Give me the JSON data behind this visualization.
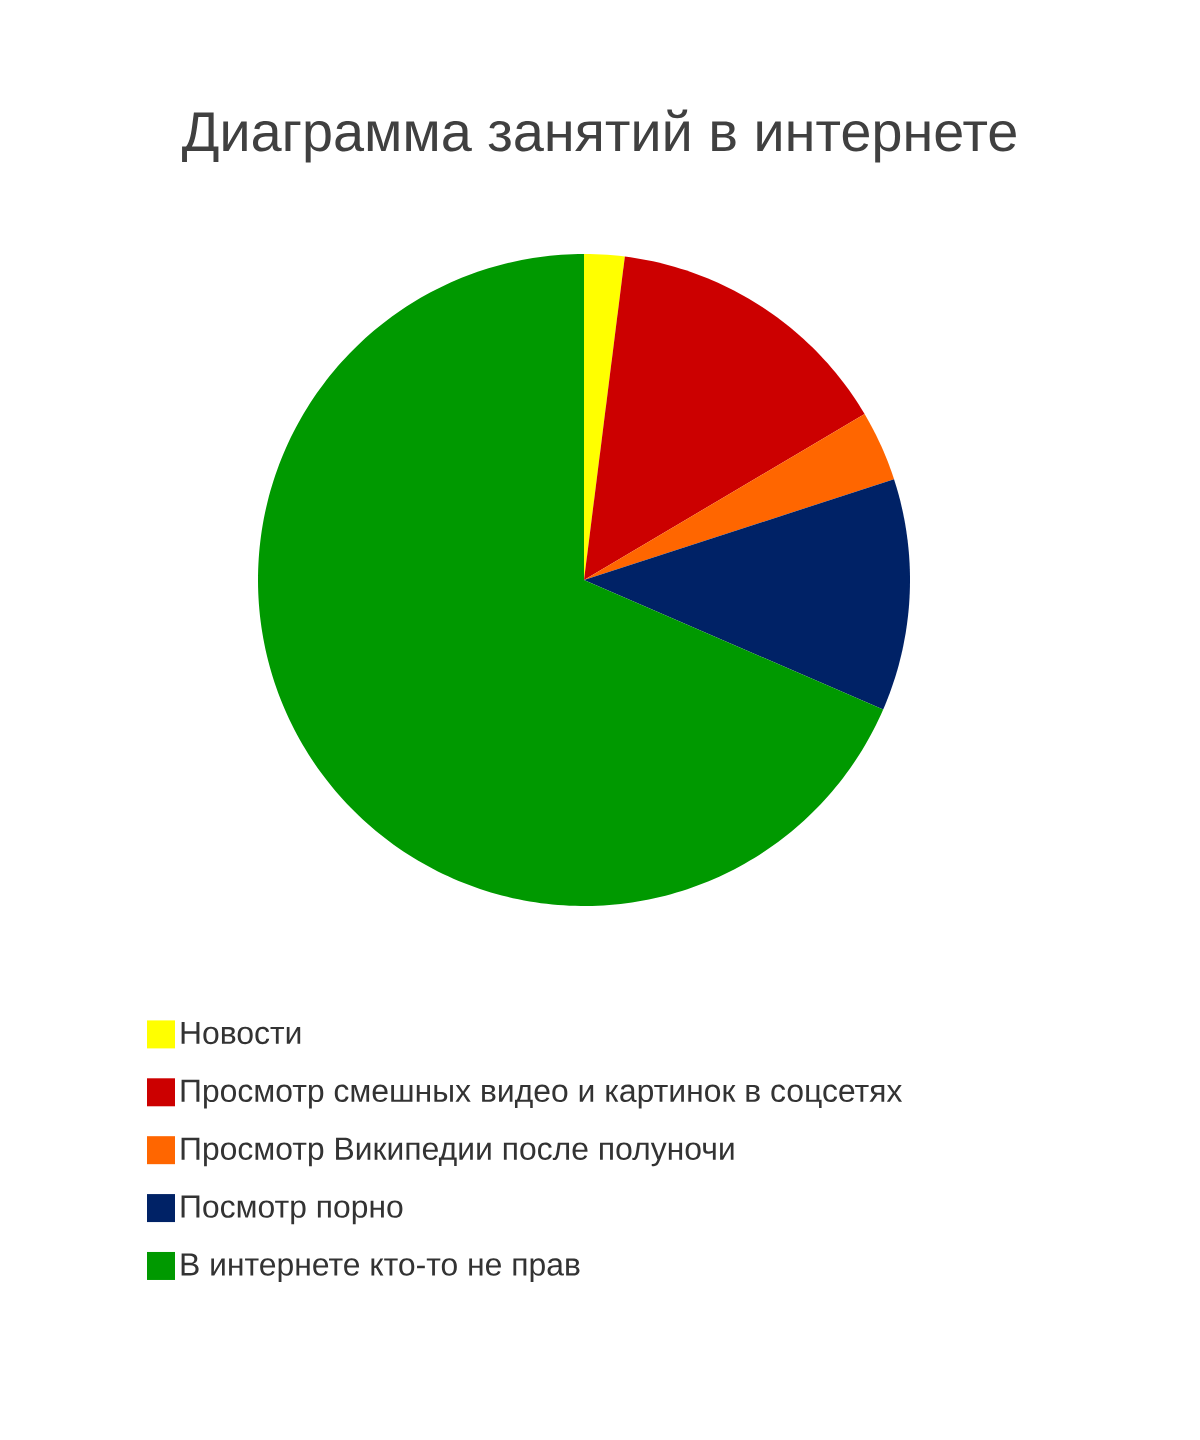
{
  "chart_data": {
    "type": "pie",
    "title": "Диаграмма занятий в интернете",
    "categories": [
      "Новости",
      "Просмотр смешных видео и картинок в соцсетях",
      "Просмотр Википедии после полуночи",
      "Посмотр порно",
      "В интернете кто-то не прав"
    ],
    "values": [
      2,
      14.5,
      3.5,
      11.5,
      68.5
    ],
    "colors": [
      "#ffff00",
      "#cc0000",
      "#ff6600",
      "#002266",
      "#009900"
    ],
    "legend": "bottom"
  }
}
